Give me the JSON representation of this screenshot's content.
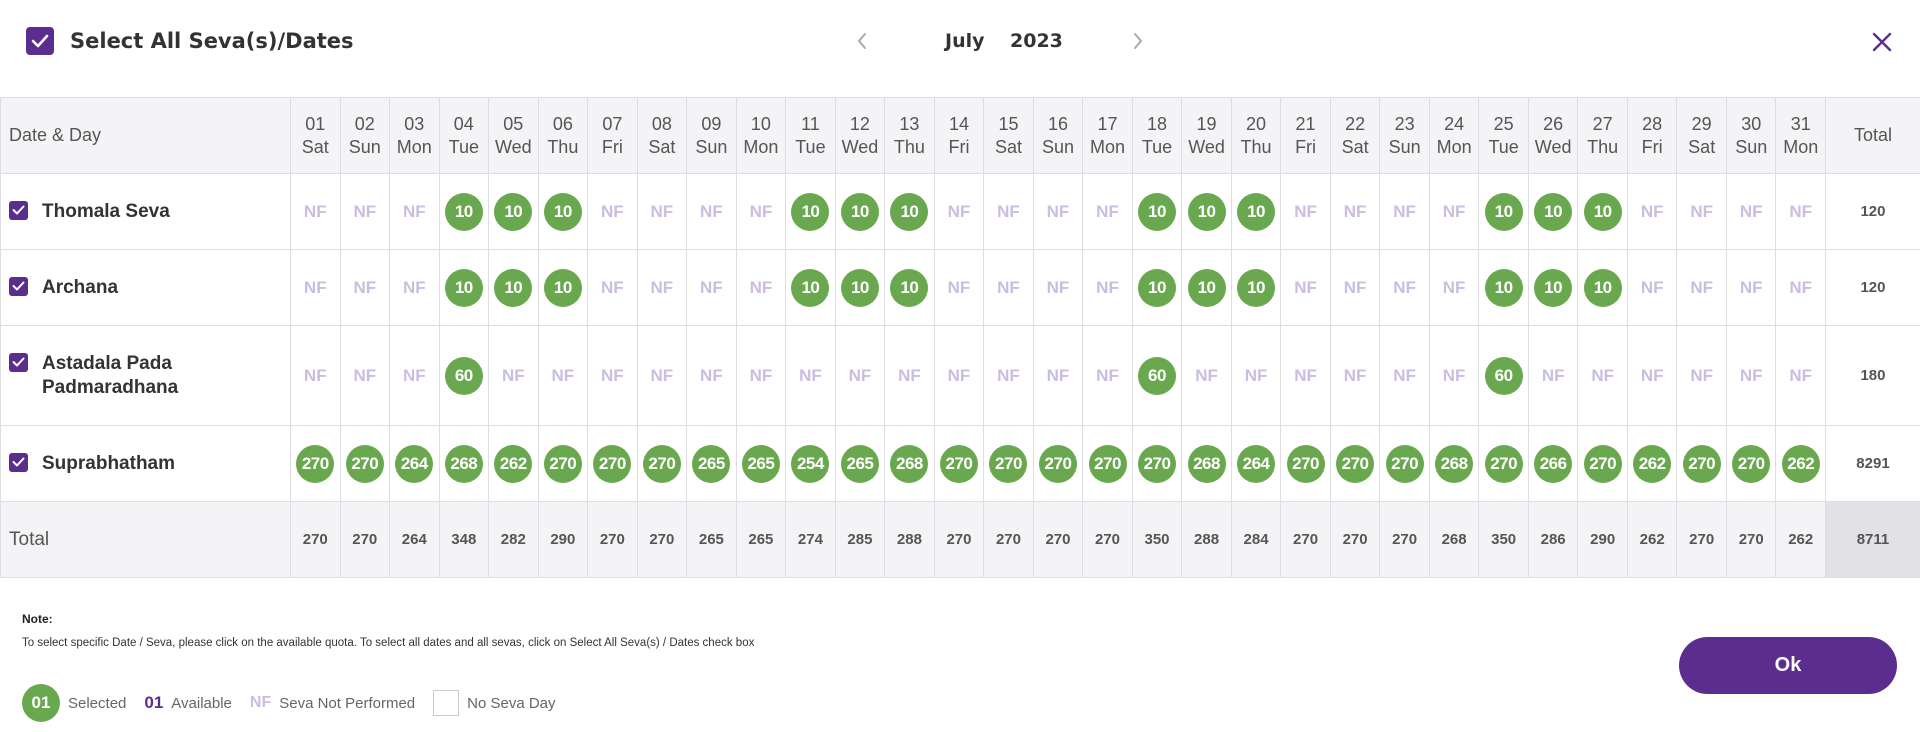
{
  "header": {
    "select_all_label": "Select All Seva(s)/Dates",
    "month": "July",
    "year": "2023",
    "prev_icon": "chevron-left",
    "next_icon": "chevron-right",
    "close_icon": "close-x"
  },
  "table": {
    "first_col_label": "Date & Day",
    "total_col_label": "Total",
    "days": [
      {
        "date": "01",
        "day": "Sat"
      },
      {
        "date": "02",
        "day": "Sun"
      },
      {
        "date": "03",
        "day": "Mon"
      },
      {
        "date": "04",
        "day": "Tue"
      },
      {
        "date": "05",
        "day": "Wed"
      },
      {
        "date": "06",
        "day": "Thu"
      },
      {
        "date": "07",
        "day": "Fri"
      },
      {
        "date": "08",
        "day": "Sat"
      },
      {
        "date": "09",
        "day": "Sun"
      },
      {
        "date": "10",
        "day": "Mon"
      },
      {
        "date": "11",
        "day": "Tue"
      },
      {
        "date": "12",
        "day": "Wed"
      },
      {
        "date": "13",
        "day": "Thu"
      },
      {
        "date": "14",
        "day": "Fri"
      },
      {
        "date": "15",
        "day": "Sat"
      },
      {
        "date": "16",
        "day": "Sun"
      },
      {
        "date": "17",
        "day": "Mon"
      },
      {
        "date": "18",
        "day": "Tue"
      },
      {
        "date": "19",
        "day": "Wed"
      },
      {
        "date": "20",
        "day": "Thu"
      },
      {
        "date": "21",
        "day": "Fri"
      },
      {
        "date": "22",
        "day": "Sat"
      },
      {
        "date": "23",
        "day": "Sun"
      },
      {
        "date": "24",
        "day": "Mon"
      },
      {
        "date": "25",
        "day": "Tue"
      },
      {
        "date": "26",
        "day": "Wed"
      },
      {
        "date": "27",
        "day": "Thu"
      },
      {
        "date": "28",
        "day": "Fri"
      },
      {
        "date": "29",
        "day": "Sat"
      },
      {
        "date": "30",
        "day": "Sun"
      },
      {
        "date": "31",
        "day": "Mon"
      }
    ],
    "sevas": [
      {
        "name": "Thomala Seva",
        "checked": true,
        "total": "120",
        "cells": [
          "NF",
          "NF",
          "NF",
          "10",
          "10",
          "10",
          "NF",
          "NF",
          "NF",
          "NF",
          "10",
          "10",
          "10",
          "NF",
          "NF",
          "NF",
          "NF",
          "10",
          "10",
          "10",
          "NF",
          "NF",
          "NF",
          "NF",
          "10",
          "10",
          "10",
          "NF",
          "NF",
          "NF",
          "NF"
        ]
      },
      {
        "name": "Archana",
        "checked": true,
        "total": "120",
        "cells": [
          "NF",
          "NF",
          "NF",
          "10",
          "10",
          "10",
          "NF",
          "NF",
          "NF",
          "NF",
          "10",
          "10",
          "10",
          "NF",
          "NF",
          "NF",
          "NF",
          "10",
          "10",
          "10",
          "NF",
          "NF",
          "NF",
          "NF",
          "10",
          "10",
          "10",
          "NF",
          "NF",
          "NF",
          "NF"
        ]
      },
      {
        "name": "Astadala Pada Padmaradhana",
        "checked": true,
        "total": "180",
        "cells": [
          "NF",
          "NF",
          "NF",
          "60",
          "NF",
          "NF",
          "NF",
          "NF",
          "NF",
          "NF",
          "NF",
          "NF",
          "NF",
          "NF",
          "NF",
          "NF",
          "NF",
          "60",
          "NF",
          "NF",
          "NF",
          "NF",
          "NF",
          "NF",
          "60",
          "NF",
          "NF",
          "NF",
          "NF",
          "NF",
          "NF"
        ]
      },
      {
        "name": "Suprabhatham",
        "checked": true,
        "total": "8291",
        "cells": [
          "270",
          "270",
          "264",
          "268",
          "262",
          "270",
          "270",
          "270",
          "265",
          "265",
          "254",
          "265",
          "268",
          "270",
          "270",
          "270",
          "270",
          "270",
          "268",
          "264",
          "270",
          "270",
          "270",
          "268",
          "270",
          "266",
          "270",
          "262",
          "270",
          "270",
          "262"
        ]
      }
    ],
    "total_row": {
      "label": "Total",
      "values": [
        "270",
        "270",
        "264",
        "348",
        "282",
        "290",
        "270",
        "270",
        "265",
        "265",
        "274",
        "285",
        "288",
        "270",
        "270",
        "270",
        "270",
        "350",
        "288",
        "284",
        "270",
        "270",
        "270",
        "268",
        "350",
        "286",
        "290",
        "262",
        "270",
        "270",
        "262"
      ],
      "grand_total": "8711"
    }
  },
  "note": {
    "title": "Note:",
    "text": "To select specific Date / Seva, please click on the available quota. To select all dates and all sevas, click on Select All Seva(s) / Dates check box"
  },
  "legend": {
    "selected_sample": "01",
    "selected_label": "Selected",
    "available_sample": "01",
    "available_label": "Available",
    "nf_sample": "NF",
    "nf_label": "Seva Not Performed",
    "no_seva_label": "No Seva Day"
  },
  "actions": {
    "ok_label": "Ok"
  },
  "colors": {
    "brand_purple": "#5b2d8e",
    "selected_green": "#6aa84f",
    "nf_lavender": "#cbbde0"
  }
}
